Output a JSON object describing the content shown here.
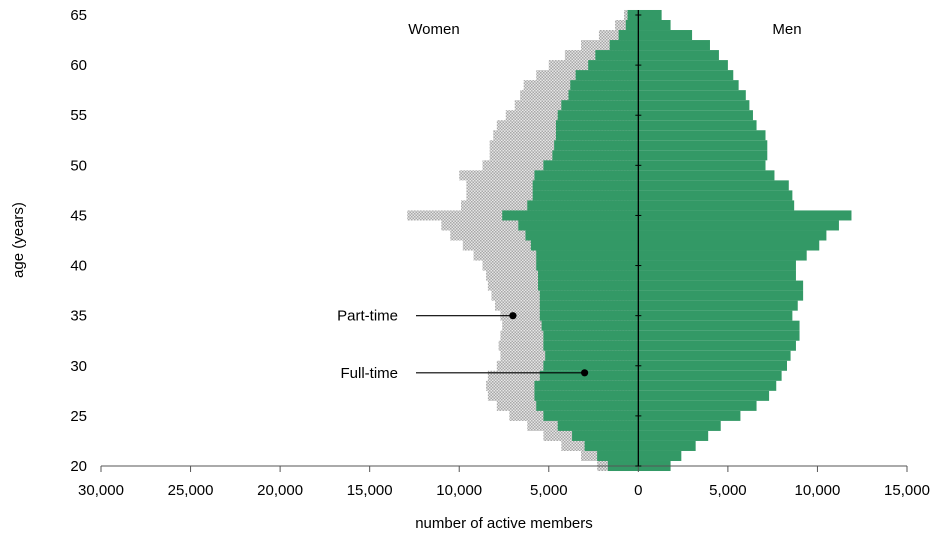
{
  "chart_data": {
    "type": "bar",
    "subtype": "population-pyramid",
    "xlabel": "number of active members",
    "ylabel": "age (years)",
    "x_ticks": [
      -30000,
      -25000,
      -20000,
      -15000,
      -10000,
      -5000,
      0,
      5000,
      10000,
      15000
    ],
    "x_tick_labels": [
      "30,000",
      "25,000",
      "20,000",
      "15,000",
      "10,000",
      "5,000",
      "0",
      "5,000",
      "10,000",
      "15,000"
    ],
    "xlim": [
      -30000,
      15000
    ],
    "y_ticks": [
      20,
      25,
      30,
      35,
      40,
      45,
      50,
      55,
      60,
      65
    ],
    "y_tick_labels": [
      "20",
      "25",
      "30",
      "35",
      "40",
      "45",
      "50",
      "55",
      "60",
      "65"
    ],
    "ylim": [
      20,
      65
    ],
    "groups": {
      "left": "Women",
      "right": "Men"
    },
    "annotations": [
      {
        "text": "Part-time",
        "target_x": -7000,
        "target_age": 35
      },
      {
        "text": "Full-time",
        "target_x": -3000,
        "target_age": 29.3
      }
    ],
    "colors": {
      "full_time": "#339966",
      "part_time": "#c8c8c8"
    },
    "ages": [
      20,
      21,
      22,
      23,
      24,
      25,
      26,
      27,
      28,
      29,
      30,
      31,
      32,
      33,
      34,
      35,
      36,
      37,
      38,
      39,
      40,
      41,
      42,
      43,
      44,
      45,
      46,
      47,
      48,
      49,
      50,
      51,
      52,
      53,
      54,
      55,
      56,
      57,
      58,
      59,
      60,
      61,
      62,
      63,
      64,
      65
    ],
    "series": [
      {
        "name": "Full-time",
        "group": "Women",
        "values": [
          1700,
          2300,
          3000,
          3700,
          4500,
          5300,
          5700,
          5800,
          5800,
          5500,
          5300,
          5200,
          5300,
          5300,
          5400,
          5500,
          5500,
          5500,
          5600,
          5600,
          5700,
          5700,
          6000,
          6300,
          6700,
          7600,
          6200,
          5900,
          5900,
          5800,
          5300,
          4800,
          4700,
          4600,
          4600,
          4500,
          4300,
          3900,
          3800,
          3500,
          2800,
          2400,
          1600,
          1100,
          700,
          600
        ]
      },
      {
        "name": "Part-time",
        "group": "Women",
        "values": [
          2300,
          3200,
          4300,
          5300,
          6200,
          7200,
          7900,
          8400,
          8500,
          8400,
          7900,
          7700,
          7800,
          7700,
          7600,
          7700,
          8000,
          8200,
          8400,
          8500,
          8700,
          9200,
          9800,
          10500,
          11000,
          12900,
          9900,
          9600,
          9600,
          10000,
          8700,
          8300,
          8300,
          8100,
          7900,
          7400,
          6900,
          6600,
          6400,
          5700,
          5000,
          4100,
          3200,
          2200,
          1300,
          800
        ]
      },
      {
        "name": "Full-time",
        "group": "Men",
        "values": [
          1800,
          2400,
          3200,
          3900,
          4600,
          5700,
          6600,
          7300,
          7700,
          8000,
          8300,
          8500,
          8800,
          9000,
          9000,
          8600,
          8900,
          9200,
          9200,
          8800,
          8800,
          9400,
          10100,
          10500,
          11200,
          11900,
          8700,
          8600,
          8400,
          7600,
          7100,
          7200,
          7200,
          7100,
          6600,
          6400,
          6200,
          6000,
          5600,
          5300,
          5000,
          4500,
          4000,
          3000,
          1800,
          1300
        ]
      }
    ]
  }
}
